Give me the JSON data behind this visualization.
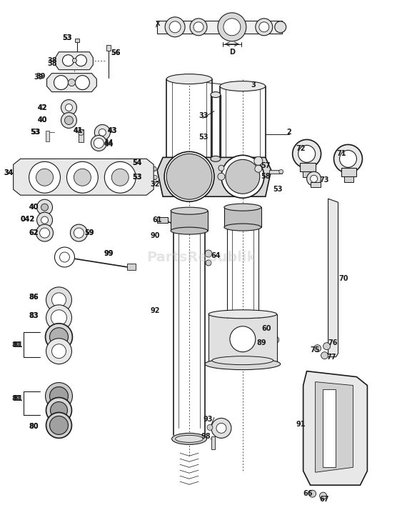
{
  "bg_color": "#ffffff",
  "line_color": "#1a1a1a",
  "text_color": "#1a1a1a",
  "watermark": "PartsRepublik",
  "watermark_color": "#c0c0c0",
  "watermark_alpha": 0.4,
  "fig_width": 5.63,
  "fig_height": 7.21,
  "dpi": 100
}
